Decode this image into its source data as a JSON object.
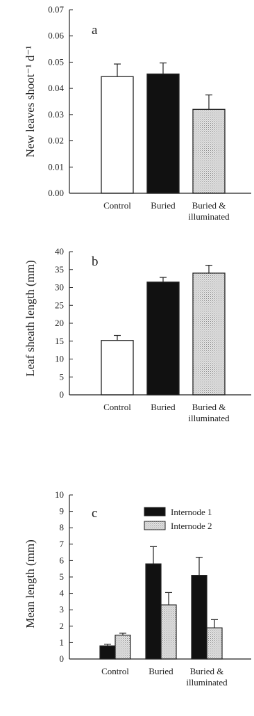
{
  "colors": {
    "control": "#ffffff",
    "buried": "#111111",
    "buried_illuminated": "#cccccc",
    "internode1": "#111111",
    "internode2": "#d4d4d4",
    "axis": "#222222"
  },
  "chart_data": [
    {
      "type": "bar",
      "panel_label": "a",
      "ylabel": "New leaves shoot⁻¹ d⁻¹",
      "categories": [
        "Control",
        "Buried",
        "Buried & illuminated"
      ],
      "category_labels": [
        [
          "Control"
        ],
        [
          "Buried"
        ],
        [
          "Buried &",
          "illuminated"
        ]
      ],
      "values": [
        0.0445,
        0.0455,
        0.032
      ],
      "errors": [
        0.0048,
        0.0042,
        0.0055
      ],
      "ylim": [
        0,
        0.07
      ],
      "yticks": [
        0,
        0.01,
        0.02,
        0.03,
        0.04,
        0.05,
        0.06,
        0.07
      ],
      "ytick_labels": [
        "0.00",
        "0.01",
        "0.02",
        "0.03",
        "0.04",
        "0.05",
        "0.06",
        "0.07"
      ],
      "grid": false
    },
    {
      "type": "bar",
      "panel_label": "b",
      "ylabel": "Leaf sheath length (mm)",
      "categories": [
        "Control",
        "Buried",
        "Buried & illuminated"
      ],
      "category_labels": [
        [
          "Control"
        ],
        [
          "Buried"
        ],
        [
          "Buried &",
          "illuminated"
        ]
      ],
      "values": [
        15.2,
        31.5,
        34.0
      ],
      "errors": [
        1.4,
        1.3,
        2.2
      ],
      "ylim": [
        0,
        40
      ],
      "yticks": [
        0,
        5,
        10,
        15,
        20,
        25,
        30,
        35,
        40
      ],
      "ytick_labels": [
        "0",
        "5",
        "10",
        "15",
        "20",
        "25",
        "30",
        "35",
        "40"
      ],
      "grid": false
    },
    {
      "type": "bar",
      "panel_label": "c",
      "ylabel": "Mean length (mm)",
      "categories": [
        "Control",
        "Buried",
        "Buried & illuminated"
      ],
      "category_labels": [
        [
          "Control"
        ],
        [
          "Buried"
        ],
        [
          "Buried &",
          "illuminated"
        ]
      ],
      "series": [
        {
          "name": "Internode 1",
          "values": [
            0.8,
            5.8,
            5.1
          ],
          "errors": [
            0.1,
            1.05,
            1.1
          ]
        },
        {
          "name": "Internode 2",
          "values": [
            1.45,
            3.3,
            1.9
          ],
          "errors": [
            0.12,
            0.75,
            0.5
          ]
        }
      ],
      "ylim": [
        0,
        10
      ],
      "yticks": [
        0,
        1,
        2,
        3,
        4,
        5,
        6,
        7,
        8,
        9,
        10
      ],
      "ytick_labels": [
        "0",
        "1",
        "2",
        "3",
        "4",
        "5",
        "6",
        "7",
        "8",
        "9",
        "10"
      ],
      "legend_position": "top-right",
      "grid": false
    }
  ]
}
